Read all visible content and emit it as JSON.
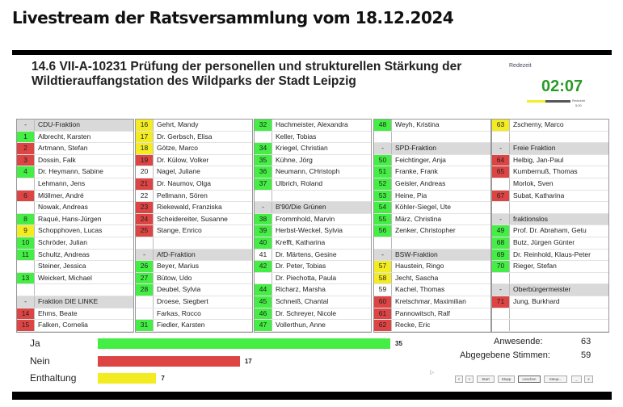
{
  "page_title": "Livestream der Ratsversammlung vom 18.12.2024",
  "topic": "14.6 VII-A-10231 Prüfung der personellen und strukturellen Stärkung der Wildtierauffangstation des Wildparks der Stadt Leipzig",
  "timer": {
    "label": "Redezeit",
    "value": "02:07",
    "max_label": "Redezeit",
    "max": "5:00",
    "progress": 0.42
  },
  "colors": {
    "yes": "#44ee44",
    "no": "#dd4444",
    "abstain": "#f4ec22"
  },
  "columns": [
    [
      {
        "t": "h",
        "n": "-",
        "name": "CDU-Fraktion"
      },
      {
        "n": "1",
        "name": "Albrecht, Karsten",
        "v": "g"
      },
      {
        "n": "2",
        "name": "Artmann, Stefan",
        "v": "r"
      },
      {
        "n": "3",
        "name": "Dossin, Falk",
        "v": "r"
      },
      {
        "n": "4",
        "name": "Dr. Heymann, Sabine",
        "v": "g"
      },
      {
        "n": "",
        "name": "Lehmann, Jens"
      },
      {
        "n": "6",
        "name": "Möllmer, André",
        "v": "r"
      },
      {
        "n": "",
        "name": "Nowak, Andreas"
      },
      {
        "n": "8",
        "name": "Raqué, Hans-Jürgen",
        "v": "g"
      },
      {
        "n": "9",
        "name": "Schopphoven, Lucas",
        "v": "y"
      },
      {
        "n": "10",
        "name": "Schröder, Julian",
        "v": "g"
      },
      {
        "n": "11",
        "name": "Schultz, Andreas",
        "v": "g"
      },
      {
        "n": "",
        "name": "Steiner, Jessica"
      },
      {
        "n": "13",
        "name": "Weickert, Michael",
        "v": "g"
      },
      {
        "n": "",
        "name": ""
      },
      {
        "t": "h",
        "n": "-",
        "name": "Fraktion DIE LINKE"
      },
      {
        "n": "14",
        "name": "Ehms, Beate",
        "v": "r"
      },
      {
        "n": "15",
        "name": "Falken, Cornelia",
        "v": "r"
      }
    ],
    [
      {
        "n": "16",
        "name": "Gehrt, Mandy",
        "v": "y"
      },
      {
        "n": "17",
        "name": "Dr. Gerbsch, Elisa",
        "v": "y"
      },
      {
        "n": "18",
        "name": "Götze, Marco",
        "v": "y"
      },
      {
        "n": "19",
        "name": "Dr. Külow, Volker",
        "v": "r"
      },
      {
        "n": "20",
        "name": "Nagel, Juliane"
      },
      {
        "n": "21",
        "name": "Dr. Naumov, Olga",
        "v": "r"
      },
      {
        "n": "22",
        "name": "Pellmann, Sören"
      },
      {
        "n": "23",
        "name": "Riekewald, Franziska",
        "v": "r"
      },
      {
        "n": "24",
        "name": "Scheidereiter, Susanne",
        "v": "r"
      },
      {
        "n": "25",
        "name": "Stange, Enrico",
        "v": "r"
      },
      {
        "n": "",
        "name": ""
      },
      {
        "t": "h",
        "n": "-",
        "name": "AfD-Fraktion"
      },
      {
        "n": "26",
        "name": "Beyer, Marius",
        "v": "g"
      },
      {
        "n": "27",
        "name": "Bütow, Udo",
        "v": "g"
      },
      {
        "n": "28",
        "name": "Deubel, Sylvia",
        "v": "g"
      },
      {
        "n": "",
        "name": "Droese, Siegbert"
      },
      {
        "n": "",
        "name": "Farkas, Rocco"
      },
      {
        "n": "31",
        "name": "Fiedler, Karsten",
        "v": "g"
      }
    ],
    [
      {
        "n": "32",
        "name": "Hachmeister, Alexandra",
        "v": "g"
      },
      {
        "n": "",
        "name": "Keller, Tobias"
      },
      {
        "n": "34",
        "name": "Kriegel, Christian",
        "v": "g"
      },
      {
        "n": "35",
        "name": "Kühne, Jörg",
        "v": "g"
      },
      {
        "n": "36",
        "name": "Neumann, CHristoph",
        "v": "g"
      },
      {
        "n": "37",
        "name": "Ulbrich, Roland",
        "v": "g"
      },
      {
        "n": "",
        "name": ""
      },
      {
        "t": "h",
        "n": "-",
        "name": "B'90/Die Grünen"
      },
      {
        "n": "38",
        "name": "Frommhold, Marvin",
        "v": "g"
      },
      {
        "n": "39",
        "name": "Herbst-Weckel, Sylvia",
        "v": "g"
      },
      {
        "n": "40",
        "name": "Krefft, Katharina",
        "v": "g"
      },
      {
        "n": "41",
        "name": "Dr. Märtens, Gesine"
      },
      {
        "n": "42",
        "name": "Dr. Peter, Tobias",
        "v": "g"
      },
      {
        "n": "",
        "name": "Dr. Piechotta, Paula"
      },
      {
        "n": "44",
        "name": "Richarz, Marsha",
        "v": "g"
      },
      {
        "n": "45",
        "name": "Schneiß, Chantal",
        "v": "g"
      },
      {
        "n": "46",
        "name": "Dr. Schreyer, Nicole",
        "v": "g"
      },
      {
        "n": "47",
        "name": "Vollerthun, Anne",
        "v": "g"
      }
    ],
    [
      {
        "n": "48",
        "name": "Weyh, Kristina",
        "v": "g"
      },
      {
        "n": "",
        "name": ""
      },
      {
        "t": "h",
        "n": "-",
        "name": "SPD-Fraktion"
      },
      {
        "n": "50",
        "name": "Feichtinger, Anja",
        "v": "g"
      },
      {
        "n": "51",
        "name": "Franke, Frank",
        "v": "g"
      },
      {
        "n": "52",
        "name": "Geisler, Andreas",
        "v": "g"
      },
      {
        "n": "53",
        "name": "Heine, Pia",
        "v": "g"
      },
      {
        "n": "54",
        "name": "Köhler-Siegel, Ute",
        "v": "g"
      },
      {
        "n": "55",
        "name": "März, Christina",
        "v": "g"
      },
      {
        "n": "56",
        "name": "Zenker, Christopher",
        "v": "g"
      },
      {
        "n": "",
        "name": ""
      },
      {
        "t": "h",
        "n": "-",
        "name": "BSW-Fraktion"
      },
      {
        "n": "57",
        "name": "Haustein, Ringo",
        "v": "y"
      },
      {
        "n": "58",
        "name": "Jecht, Sascha",
        "v": "y"
      },
      {
        "n": "59",
        "name": "Kachel, Thomas"
      },
      {
        "n": "60",
        "name": "Kretschmar, Maximilian",
        "v": "r"
      },
      {
        "n": "61",
        "name": "Pannowitsch, Ralf",
        "v": "r"
      },
      {
        "n": "62",
        "name": "Recke, Eric",
        "v": "r"
      }
    ],
    [
      {
        "n": "63",
        "name": "Zscherny, Marco",
        "v": "y"
      },
      {
        "n": "",
        "name": ""
      },
      {
        "t": "h",
        "n": "-",
        "name": "Freie Fraktion"
      },
      {
        "n": "64",
        "name": "Helbig, Jan-Paul",
        "v": "r"
      },
      {
        "n": "65",
        "name": "Kumbernuß, Thomas",
        "v": "r"
      },
      {
        "n": "",
        "name": "Morlok, Sven"
      },
      {
        "n": "67",
        "name": "Subat, Katharina",
        "v": "r"
      },
      {
        "n": "",
        "name": ""
      },
      {
        "t": "h",
        "n": "-",
        "name": "fraktionslos"
      },
      {
        "n": "49",
        "name": "Prof. Dr. Abraham, Getu",
        "v": "g"
      },
      {
        "n": "68",
        "name": "Butz, Jürgen Günter",
        "v": "g"
      },
      {
        "n": "69",
        "name": "Dr. Reinhold, Klaus-Peter",
        "v": "g"
      },
      {
        "n": "70",
        "name": "Rieger, Stefan",
        "v": "g"
      },
      {
        "n": "",
        "name": ""
      },
      {
        "t": "h",
        "n": "-",
        "name": "Oberbürgermeister"
      },
      {
        "n": "71",
        "name": "Jung, Burkhard",
        "v": "r"
      },
      {
        "n": "",
        "name": ""
      },
      {
        "n": "",
        "name": ""
      }
    ]
  ],
  "votes": {
    "max": 35,
    "yes": {
      "label": "Ja",
      "value": 35
    },
    "no": {
      "label": "Nein",
      "value": 17
    },
    "abstain": {
      "label": "Enthaltung",
      "value": 7
    }
  },
  "stats": {
    "present_label": "Anwesende:",
    "present": "63",
    "cast_label": "Abgegebene Stimmen:",
    "cast": "59"
  },
  "buttons": {
    "prev": "<",
    "next": ">",
    "start": "Start",
    "stop": "Stopp",
    "clear": "Löschen",
    "setup": "Setup...",
    "minimize": "_",
    "close": "x"
  }
}
